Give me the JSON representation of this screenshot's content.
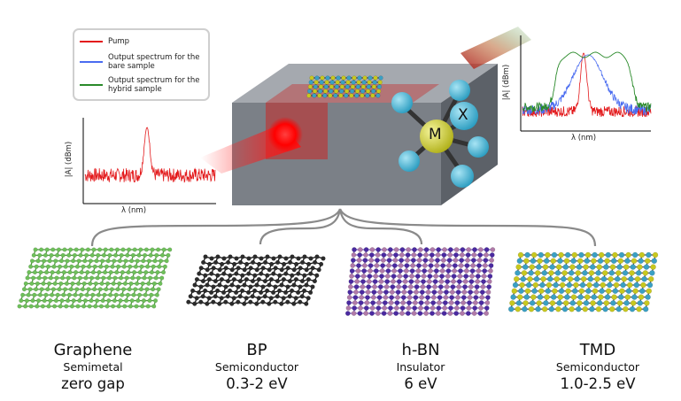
{
  "legend": {
    "items": [
      {
        "label": "Pump",
        "color": "#e31a1c"
      },
      {
        "label": "Output spectrum for the bare sample",
        "color": "#4a6cf0"
      },
      {
        "label": "Output spectrum for the hybrid sample",
        "color": "#2a8a2a"
      }
    ]
  },
  "plots": {
    "left": {
      "xlabel": "λ (nm)",
      "ylabel": "|A| (dBm)"
    },
    "right": {
      "xlabel": "λ (nm)",
      "ylabel": "|A| (dBm)"
    }
  },
  "atoms": {
    "metal": "M",
    "chalcogen": "X"
  },
  "materials": [
    {
      "name": "Graphene",
      "class": "Semimetal",
      "gap": "zero gap",
      "color": "#6ec05a"
    },
    {
      "name": "BP",
      "class": "Semiconductor",
      "gap": "0.3-2 eV",
      "color": "#2b2b2b"
    },
    {
      "name": "h-BN",
      "class": "Insulator",
      "gap": "6 eV",
      "color": "#5a3aa8"
    },
    {
      "name": "TMD",
      "class": "Semiconductor",
      "gap": "1.0-2.5 eV",
      "color": "#c8c81e"
    }
  ]
}
